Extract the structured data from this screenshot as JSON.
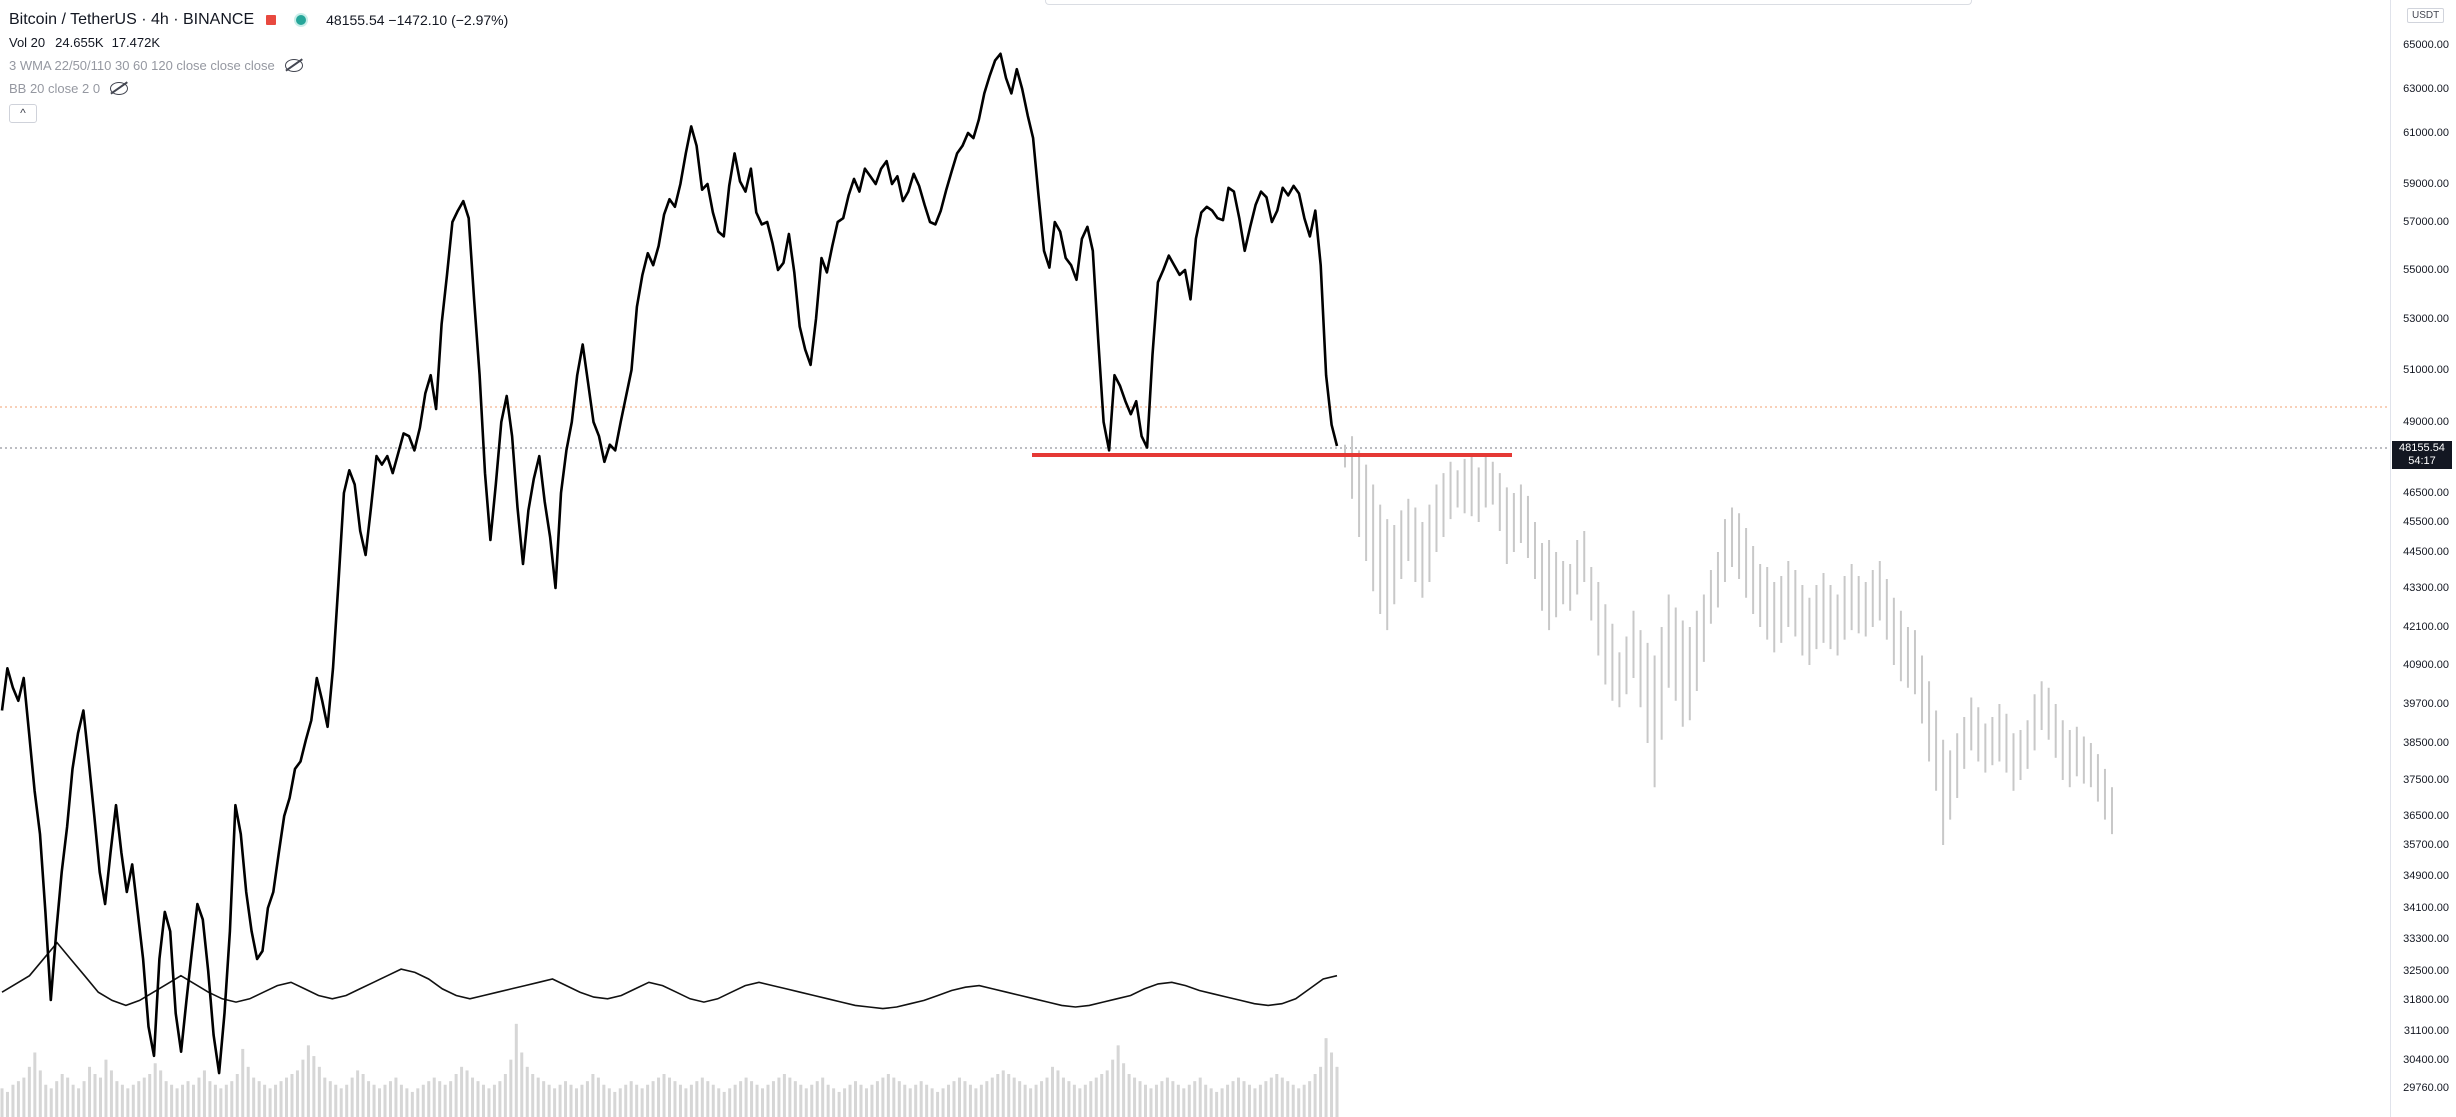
{
  "legend": {
    "symbol": "Bitcoin / TetherUS · 4h · BINANCE",
    "quote": "48155.54  −1472.10 (−2.97%)",
    "vol_name": "Vol 20",
    "vol_value1": "24.655K",
    "vol_value2": "17.472K",
    "wma": "3 WMA 22/50/110 30 60 120 close close close",
    "bb": "BB 20 close 2 0",
    "collapse": "^"
  },
  "axis": {
    "currency": "USDT",
    "price_tag": "48155.54",
    "countdown": "54:17"
  },
  "colors": {
    "line": "#000000",
    "support": "#e53935",
    "ghost": "#c8c8c8",
    "volume": "#d6d6d6",
    "current_price": "#787b86",
    "bb_line": "#f0a070"
  },
  "chart_data": {
    "type": "line",
    "title": "Bitcoin / TetherUS · 4h · BINANCE",
    "xlabel": "",
    "ylabel": "",
    "y_ticks": [
      65000,
      63000,
      61000,
      59000,
      57000,
      55000,
      53000,
      51000,
      49000,
      46500,
      45500,
      44500,
      43300,
      42100,
      40900,
      39700,
      38500,
      37500,
      36500,
      35700,
      34900,
      34100,
      33300,
      32500,
      31800,
      31100,
      30400,
      29760
    ],
    "y_tick_labels": [
      "65000.00",
      "63000.00",
      "61000.00",
      "59000.00",
      "57000.00",
      "55000.00",
      "53000.00",
      "51000.00",
      "49000.00",
      "46500.00",
      "45500.00",
      "44500.00",
      "43300.00",
      "42100.00",
      "40900.00",
      "39700.00",
      "38500.00",
      "37500.00",
      "36500.00",
      "35700.00",
      "34900.00",
      "34100.00",
      "33300.00",
      "32500.00",
      "31800.00",
      "31100.00",
      "30400.00",
      "29760.00"
    ],
    "current_price": 48155.54,
    "reference_level": 49500,
    "support_level": 47900,
    "series": [
      {
        "values": [
          39500,
          40800,
          40200,
          39800,
          40500,
          38800,
          37200,
          36000,
          34000,
          31800,
          33500,
          35000,
          36200,
          37800,
          38800,
          39500,
          38000,
          36500,
          35000,
          34200,
          35500,
          36800,
          35500,
          34500,
          35200,
          34000,
          32800,
          31200,
          30500,
          32800,
          34000,
          33500,
          31500,
          30600,
          31800,
          33000,
          34200,
          33800,
          32500,
          31000,
          30100,
          31500,
          33500,
          36800,
          36000,
          34500,
          33500,
          32800,
          33000,
          34100,
          34500,
          35500,
          36500,
          37000,
          37800,
          38000,
          38600,
          39200,
          40500,
          39800,
          39000,
          40800,
          43500,
          46500,
          47300,
          46800,
          45200,
          44400,
          46000,
          47800,
          47500,
          47800,
          47200,
          47900,
          48600,
          48500,
          48000,
          48800,
          50100,
          50800,
          49500,
          52800,
          54800,
          57000,
          57600,
          58100,
          57200,
          53800,
          50800,
          47200,
          44900,
          46800,
          49000,
          50000,
          48500,
          46000,
          44100,
          45900,
          47000,
          47800,
          46200,
          45000,
          43300,
          46500,
          48000,
          49000,
          50800,
          52000,
          50500,
          49000,
          48500,
          47600,
          48200,
          48000,
          49000,
          50000,
          51000,
          53500,
          54800,
          55700,
          55200,
          56000,
          57400,
          58200,
          57800,
          59000,
          60200,
          61300,
          60500,
          58700,
          59000,
          57500,
          56600,
          56400,
          58900,
          60200,
          59100,
          58600,
          59600,
          57500,
          56900,
          57000,
          56100,
          55000,
          55300,
          56500,
          54900,
          52700,
          51800,
          51200,
          53000,
          55500,
          54900,
          56000,
          57000,
          57200,
          58400,
          59200,
          58600,
          59600,
          59300,
          59000,
          59600,
          59900,
          59000,
          59300,
          58100,
          58600,
          59400,
          58900,
          57900,
          57000,
          56900,
          57600,
          58700,
          59500,
          60200,
          60500,
          61000,
          60800,
          61600,
          62800,
          63600,
          64300,
          64600,
          63500,
          62800,
          63900,
          63000,
          61800,
          60800,
          58400,
          55800,
          55100,
          57000,
          56600,
          55500,
          55200,
          54600,
          56300,
          56800,
          55800,
          52200,
          49000,
          48000,
          50800,
          50400,
          49800,
          49300,
          49800,
          48500,
          48100,
          51600,
          54500,
          55000,
          55600,
          55200,
          54800,
          55000,
          53800,
          56300,
          57500,
          57800,
          57600,
          57200,
          57100,
          58800,
          58600,
          57200,
          55800,
          56800,
          57900,
          58600,
          58300,
          57000,
          57600,
          58800,
          58400,
          58900,
          58500,
          57200,
          56400,
          57600,
          55200,
          50800,
          48900,
          48155
        ]
      }
    ],
    "projection_low_high": [
      [
        48200,
        47400
      ],
      [
        48500,
        46300
      ],
      [
        48000,
        45000
      ],
      [
        47500,
        44200
      ],
      [
        46800,
        43200
      ],
      [
        46100,
        42500
      ],
      [
        45600,
        42000
      ],
      [
        45400,
        42800
      ],
      [
        45900,
        43600
      ],
      [
        46300,
        44200
      ],
      [
        46000,
        43500
      ],
      [
        45500,
        43000
      ],
      [
        46100,
        43500
      ],
      [
        46800,
        44500
      ],
      [
        47200,
        45000
      ],
      [
        47600,
        45600
      ],
      [
        47300,
        46000
      ],
      [
        47700,
        45800
      ],
      [
        47900,
        45700
      ],
      [
        47400,
        45500
      ],
      [
        47800,
        46000
      ],
      [
        47600,
        46100
      ],
      [
        47200,
        45200
      ],
      [
        46700,
        44100
      ],
      [
        46500,
        44500
      ],
      [
        46800,
        44800
      ],
      [
        46400,
        44300
      ],
      [
        45500,
        43600
      ],
      [
        44800,
        42600
      ],
      [
        44900,
        42000
      ],
      [
        44500,
        42400
      ],
      [
        44200,
        42800
      ],
      [
        44100,
        42600
      ],
      [
        44900,
        43100
      ],
      [
        45200,
        43500
      ],
      [
        44000,
        42300
      ],
      [
        43500,
        41200
      ],
      [
        42800,
        40300
      ],
      [
        42200,
        39800
      ],
      [
        41300,
        39600
      ],
      [
        41800,
        40000
      ],
      [
        42600,
        40500
      ],
      [
        42000,
        39600
      ],
      [
        41600,
        38500
      ],
      [
        41200,
        37300
      ],
      [
        42100,
        38600
      ],
      [
        43100,
        40200
      ],
      [
        42700,
        39800
      ],
      [
        42300,
        39000
      ],
      [
        42100,
        39200
      ],
      [
        42600,
        40100
      ],
      [
        43100,
        41000
      ],
      [
        43900,
        42200
      ],
      [
        44500,
        42700
      ],
      [
        45600,
        43500
      ],
      [
        46000,
        44000
      ],
      [
        45800,
        43600
      ],
      [
        45300,
        43000
      ],
      [
        44700,
        42500
      ],
      [
        44100,
        42100
      ],
      [
        44000,
        41700
      ],
      [
        43500,
        41300
      ],
      [
        43700,
        41600
      ],
      [
        44200,
        42100
      ],
      [
        43900,
        41800
      ],
      [
        43400,
        41200
      ],
      [
        43000,
        40900
      ],
      [
        43400,
        41400
      ],
      [
        43800,
        41600
      ],
      [
        43400,
        41400
      ],
      [
        43100,
        41200
      ],
      [
        43700,
        41700
      ],
      [
        44100,
        42000
      ],
      [
        43700,
        41900
      ],
      [
        43500,
        41800
      ],
      [
        43900,
        42100
      ],
      [
        44200,
        42300
      ],
      [
        43600,
        41700
      ],
      [
        43000,
        40900
      ],
      [
        42600,
        40400
      ],
      [
        42100,
        40200
      ],
      [
        42000,
        40000
      ],
      [
        41200,
        39100
      ],
      [
        40400,
        38000
      ],
      [
        39500,
        37200
      ],
      [
        38600,
        35700
      ],
      [
        38300,
        36400
      ],
      [
        38800,
        37000
      ],
      [
        39300,
        37800
      ],
      [
        39900,
        38300
      ],
      [
        39600,
        38000
      ],
      [
        39100,
        37700
      ],
      [
        39300,
        37900
      ],
      [
        39700,
        38000
      ],
      [
        39400,
        37700
      ],
      [
        38800,
        37200
      ],
      [
        38900,
        37500
      ],
      [
        39200,
        37800
      ],
      [
        40000,
        38300
      ],
      [
        40400,
        38900
      ],
      [
        40200,
        38600
      ],
      [
        39700,
        38100
      ],
      [
        39200,
        37500
      ],
      [
        38900,
        37300
      ],
      [
        39000,
        37600
      ],
      [
        38700,
        37400
      ],
      [
        38500,
        37300
      ],
      [
        38200,
        36900
      ],
      [
        37800,
        36400
      ],
      [
        37300,
        36000
      ]
    ],
    "volume_k": [
      8,
      7,
      9,
      10,
      11,
      14,
      18,
      13,
      9,
      8,
      10,
      12,
      11,
      9,
      8,
      10,
      14,
      12,
      11,
      16,
      13,
      10,
      9,
      8,
      9,
      10,
      11,
      12,
      15,
      13,
      10,
      9,
      8,
      9,
      10,
      9,
      11,
      13,
      10,
      9,
      8,
      9,
      10,
      12,
      19,
      14,
      11,
      10,
      9,
      8,
      9,
      10,
      11,
      12,
      13,
      16,
      20,
      17,
      14,
      11,
      10,
      9,
      8,
      9,
      11,
      13,
      12,
      10,
      9,
      8,
      9,
      10,
      11,
      9,
      8,
      7,
      8,
      9,
      10,
      11,
      10,
      9,
      10,
      12,
      14,
      13,
      11,
      10,
      9,
      8,
      9,
      10,
      12,
      16,
      26,
      18,
      14,
      12,
      11,
      10,
      9,
      8,
      9,
      10,
      9,
      8,
      9,
      10,
      12,
      11,
      9,
      8,
      7,
      8,
      9,
      10,
      9,
      8,
      9,
      10,
      11,
      12,
      11,
      10,
      9,
      8,
      9,
      10,
      11,
      10,
      9,
      8,
      7,
      8,
      9,
      10,
      11,
      10,
      9,
      8,
      9,
      10,
      11,
      12,
      11,
      10,
      9,
      8,
      9,
      10,
      11,
      9,
      8,
      7,
      8,
      9,
      10,
      9,
      8,
      9,
      10,
      11,
      12,
      11,
      10,
      9,
      8,
      9,
      10,
      9,
      8,
      7,
      8,
      9,
      10,
      11,
      10,
      9,
      8,
      9,
      10,
      11,
      12,
      13,
      12,
      11,
      10,
      9,
      8,
      9,
      10,
      11,
      14,
      13,
      11,
      10,
      9,
      8,
      9,
      10,
      11,
      12,
      13,
      16,
      20,
      15,
      12,
      11,
      10,
      9,
      8,
      9,
      10,
      11,
      10,
      9,
      8,
      9,
      10,
      11,
      9,
      8,
      7,
      8,
      9,
      10,
      11,
      10,
      9,
      8,
      9,
      10,
      11,
      12,
      11,
      10,
      9,
      8,
      9,
      10,
      12,
      14,
      22,
      18,
      14
    ],
    "volume_ma_k": [
      10,
      10.5,
      11,
      12,
      13,
      12,
      11,
      10,
      9.5,
      9.2,
      9.5,
      10,
      10.5,
      11,
      10.5,
      10,
      9.6,
      9.4,
      9.6,
      10,
      10.4,
      10.6,
      10.2,
      9.8,
      9.6,
      9.8,
      10.2,
      10.6,
      11,
      11.4,
      11.2,
      10.8,
      10.2,
      9.8,
      9.6,
      9.8,
      10,
      10.2,
      10.4,
      10.6,
      10.8,
      10.4,
      10,
      9.7,
      9.6,
      9.8,
      10.2,
      10.6,
      10.4,
      10,
      9.6,
      9.4,
      9.6,
      10,
      10.4,
      10.6,
      10.4,
      10.2,
      10,
      9.8,
      9.6,
      9.4,
      9.2,
      9.1,
      9,
      9.1,
      9.3,
      9.5,
      9.8,
      10.1,
      10.3,
      10.4,
      10.2,
      10,
      9.8,
      9.6,
      9.4,
      9.2,
      9.1,
      9.2,
      9.4,
      9.6,
      9.8,
      10.2,
      10.5,
      10.6,
      10.4,
      10.1,
      9.9,
      9.7,
      9.5,
      9.3,
      9.2,
      9.3,
      9.6,
      10.2,
      10.8,
      11
    ],
    "volume_scale_max_k": 60
  }
}
